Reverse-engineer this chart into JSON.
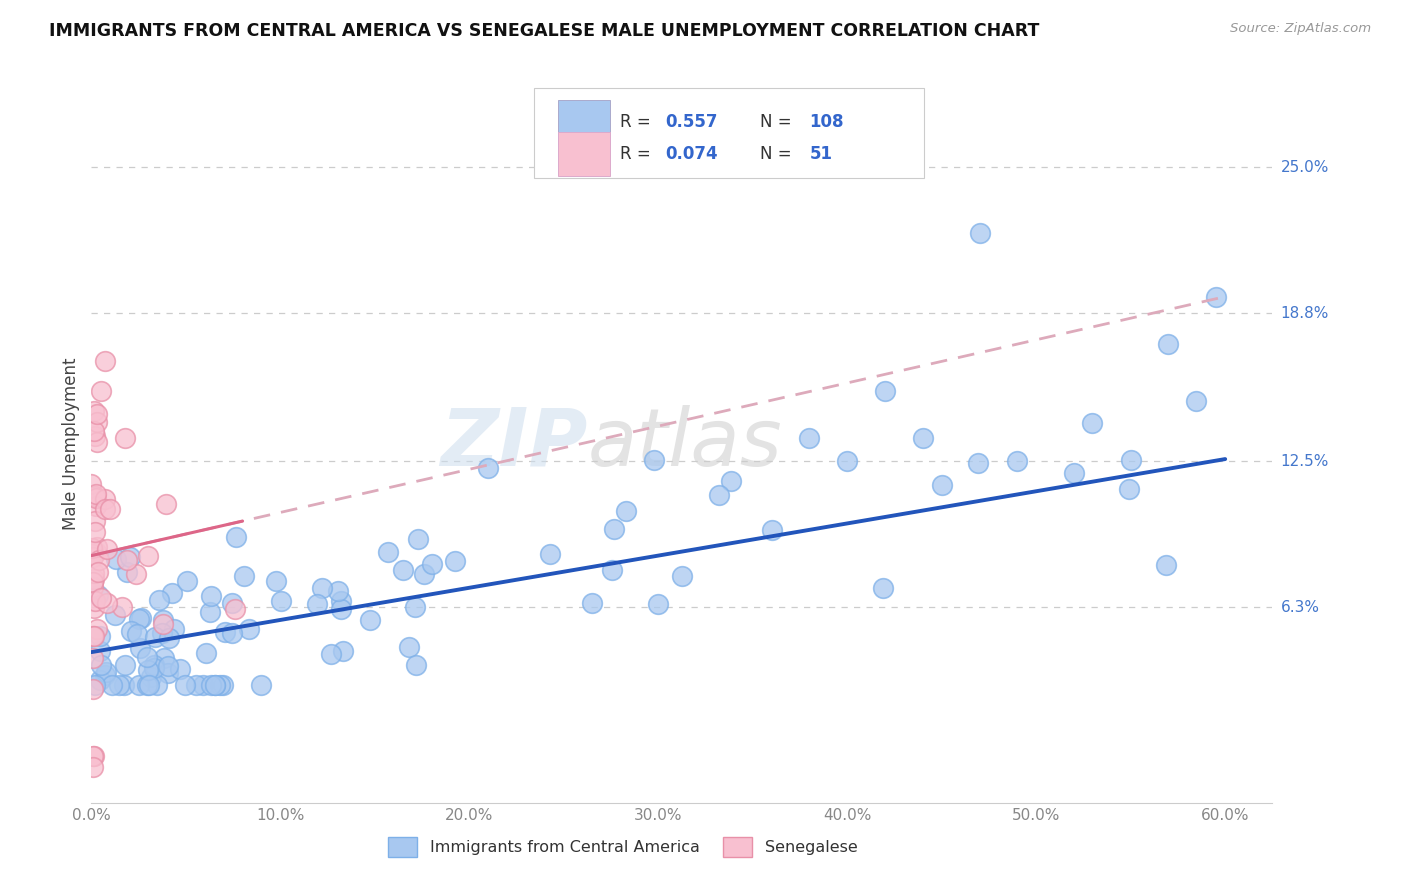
{
  "title": "IMMIGRANTS FROM CENTRAL AMERICA VS SENEGALESE MALE UNEMPLOYMENT CORRELATION CHART",
  "source": "Source: ZipAtlas.com",
  "ylabel": "Male Unemployment",
  "xlim": [
    0.0,
    0.625
  ],
  "ylim": [
    -0.02,
    0.285
  ],
  "xtick_labels": [
    "0.0%",
    "10.0%",
    "20.0%",
    "30.0%",
    "40.0%",
    "50.0%",
    "60.0%"
  ],
  "xtick_values": [
    0.0,
    0.1,
    0.2,
    0.3,
    0.4,
    0.5,
    0.6
  ],
  "ytick_labels": [
    "6.3%",
    "12.5%",
    "18.8%",
    "25.0%"
  ],
  "ytick_values": [
    0.063,
    0.125,
    0.188,
    0.25
  ],
  "R_blue": 0.557,
  "N_blue": 108,
  "R_pink": 0.074,
  "N_pink": 51,
  "legend_label_blue": "Immigrants from Central America",
  "legend_label_pink": "Senegalese",
  "watermark_zip": "ZIP",
  "watermark_atlas": "atlas",
  "blue_color": "#A8C8F0",
  "blue_edge_color": "#7EB0E8",
  "pink_color": "#F8C0D0",
  "pink_edge_color": "#E890A8",
  "trend_blue_color": "#2255BB",
  "trend_pink_color": "#DD6688",
  "trend_pink_dash_color": "#DDAABB",
  "background_color": "#FFFFFF",
  "grid_color": "#CCCCCC",
  "trend_blue_x0": 0.0,
  "trend_blue_y0": 0.044,
  "trend_blue_x1": 0.6,
  "trend_blue_y1": 0.126,
  "trend_pink_x0": 0.0,
  "trend_pink_y0": 0.085,
  "trend_pink_x1": 0.6,
  "trend_pink_y1": 0.195
}
